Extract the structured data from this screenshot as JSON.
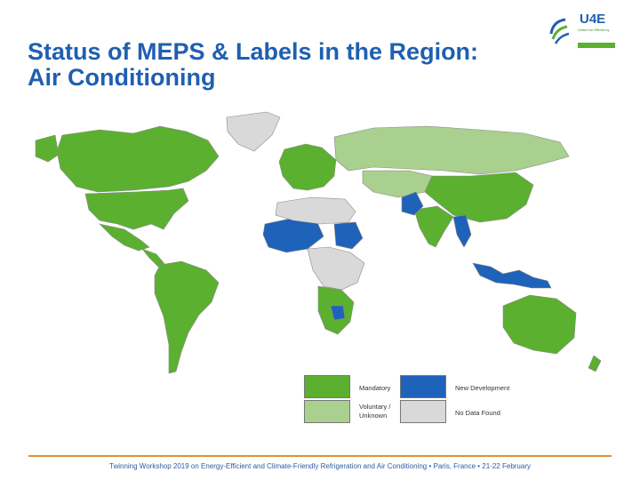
{
  "slide": {
    "title_line1": "Status of MEPS & Labels in the Region:",
    "title_line2": "Air Conditioning",
    "footer": "Twinning Workshop 2019 on Energy-Efficient and Climate-Friendly Refrigeration and Air Conditioning • Paris, France • 21-22 February"
  },
  "logo": {
    "name": "U4E",
    "tagline": "United for Efficiency"
  },
  "colors": {
    "title": "#1f5fb0",
    "mandatory": "#5bb030",
    "voluntary": "#a9d08e",
    "new_development": "#1f62b9",
    "no_data": "#d9d9d9",
    "rule": "#d9962b"
  },
  "legend": [
    {
      "status": "mandatory",
      "label": "Mandatory"
    },
    {
      "status": "new_development",
      "label": "New Development"
    },
    {
      "status": "voluntary",
      "label": "Voluntary / Unknown"
    },
    {
      "status": "no_data",
      "label": "No Data Found"
    }
  ],
  "map": {
    "regions": [
      {
        "name": "Greenland",
        "status": "no_data"
      },
      {
        "name": "Canada",
        "status": "mandatory"
      },
      {
        "name": "United States",
        "status": "mandatory"
      },
      {
        "name": "Mexico",
        "status": "mandatory"
      },
      {
        "name": "Central America",
        "status": "mandatory"
      },
      {
        "name": "South America",
        "status": "mandatory"
      },
      {
        "name": "Europe",
        "status": "mandatory"
      },
      {
        "name": "Russia",
        "status": "voluntary"
      },
      {
        "name": "Central Asia",
        "status": "voluntary"
      },
      {
        "name": "China",
        "status": "mandatory"
      },
      {
        "name": "India",
        "status": "mandatory"
      },
      {
        "name": "Pakistan",
        "status": "new_development"
      },
      {
        "name": "Myanmar",
        "status": "new_development"
      },
      {
        "name": "Indonesia",
        "status": "new_development"
      },
      {
        "name": "West Africa",
        "status": "new_development"
      },
      {
        "name": "Sudan",
        "status": "new_development"
      },
      {
        "name": "Zimbabwe",
        "status": "new_development"
      },
      {
        "name": "Australia",
        "status": "mandatory"
      },
      {
        "name": "New Zealand",
        "status": "mandatory"
      }
    ]
  }
}
